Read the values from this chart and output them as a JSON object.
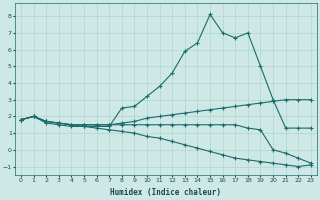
{
  "xlabel": "Humidex (Indice chaleur)",
  "ylabel": "",
  "background_color": "#cde8e5",
  "grid_color": "#aacfcc",
  "line_color": "#1a6b6b",
  "xlim": [
    -0.5,
    23.5
  ],
  "ylim": [
    -1.5,
    8.8
  ],
  "xticks": [
    0,
    1,
    2,
    3,
    4,
    5,
    6,
    7,
    8,
    9,
    10,
    11,
    12,
    13,
    14,
    15,
    16,
    17,
    18,
    19,
    20,
    21,
    22,
    23
  ],
  "yticks": [
    -1,
    0,
    1,
    2,
    3,
    4,
    5,
    6,
    7,
    8
  ],
  "line1_x": [
    0,
    1,
    2,
    3,
    4,
    5,
    6,
    7,
    8,
    9,
    10,
    11,
    12,
    13,
    14,
    15,
    16,
    17,
    18,
    19,
    20,
    21,
    22,
    23
  ],
  "line1_y": [
    1.8,
    2.0,
    1.6,
    1.5,
    1.4,
    1.4,
    1.4,
    1.4,
    2.5,
    2.6,
    3.2,
    3.8,
    4.6,
    5.9,
    6.4,
    8.1,
    7.0,
    6.7,
    7.0,
    5.0,
    3.0,
    1.3,
    1.3,
    1.3
  ],
  "line2_x": [
    0,
    1,
    2,
    3,
    4,
    5,
    6,
    7,
    8,
    9,
    10,
    11,
    12,
    13,
    14,
    15,
    16,
    17,
    18,
    19,
    20,
    21,
    22,
    23
  ],
  "line2_y": [
    1.8,
    2.0,
    1.7,
    1.6,
    1.5,
    1.5,
    1.5,
    1.5,
    1.6,
    1.7,
    1.9,
    2.0,
    2.1,
    2.2,
    2.3,
    2.4,
    2.5,
    2.6,
    2.7,
    2.8,
    2.9,
    3.0,
    3.0,
    3.0
  ],
  "line3_x": [
    0,
    1,
    2,
    3,
    4,
    5,
    6,
    7,
    8,
    9,
    10,
    11,
    12,
    13,
    14,
    15,
    16,
    17,
    18,
    19,
    20,
    21,
    22,
    23
  ],
  "line3_y": [
    1.8,
    2.0,
    1.7,
    1.6,
    1.5,
    1.5,
    1.5,
    1.5,
    1.5,
    1.5,
    1.5,
    1.5,
    1.5,
    1.5,
    1.5,
    1.5,
    1.5,
    1.5,
    1.3,
    1.2,
    0.0,
    -0.2,
    -0.5,
    -0.8
  ],
  "line4_x": [
    0,
    1,
    2,
    3,
    4,
    5,
    6,
    7,
    8,
    9,
    10,
    11,
    12,
    13,
    14,
    15,
    16,
    17,
    18,
    19,
    20,
    21,
    22,
    23
  ],
  "line4_y": [
    1.8,
    2.0,
    1.7,
    1.6,
    1.5,
    1.4,
    1.3,
    1.2,
    1.1,
    1.0,
    0.8,
    0.7,
    0.5,
    0.3,
    0.1,
    -0.1,
    -0.3,
    -0.5,
    -0.6,
    -0.7,
    -0.8,
    -0.9,
    -1.0,
    -0.9
  ]
}
